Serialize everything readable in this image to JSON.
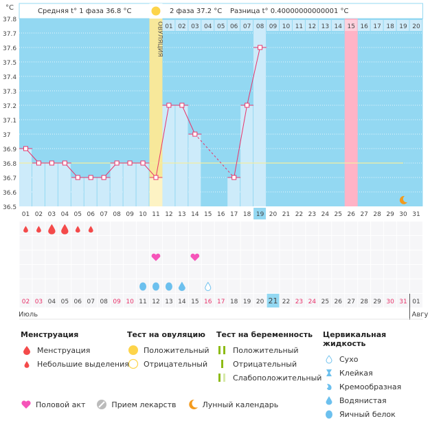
{
  "header": {
    "unit_label": "°C",
    "phase1_label": "Средняя t° 1 фаза 36.8 °C",
    "phase2_label": "2 фаза 37.2 °C",
    "diff_label": "Разница t° 0.40000000000001 °C",
    "ovulation_label": "ОВУЛЯЦИЯ"
  },
  "colors": {
    "background": "#93d8f2",
    "bar": "#cdebfa",
    "ovulation": "#f7e89a",
    "line": "#e8336a",
    "average": "#f4eda0",
    "expected_period": "#ffb3c6",
    "today": "#93d8f2",
    "weekend": "#e8336a"
  },
  "chart_data": {
    "type": "line",
    "title": "",
    "xlabel": "",
    "ylabel": "°C",
    "ylim": [
      36.5,
      37.8
    ],
    "yticks": [
      "36.5",
      "36.6",
      "36.7",
      "36.8",
      "36.9",
      "37",
      "37.1",
      "37.2",
      "37.3",
      "37.4",
      "37.5",
      "37.6",
      "37.7",
      "37.8"
    ],
    "x": [
      "01",
      "02",
      "03",
      "04",
      "05",
      "06",
      "07",
      "08",
      "09",
      "10",
      "11",
      "12",
      "13",
      "14",
      "15",
      "16",
      "17",
      "18",
      "19",
      "20",
      "21",
      "22",
      "23",
      "24",
      "25",
      "26",
      "27",
      "28",
      "29",
      "30",
      "31"
    ],
    "cycle_days_top": [
      "01",
      "02",
      "03",
      "04",
      "05",
      "06",
      "07",
      "08",
      "09",
      "10",
      "11",
      "12",
      "13",
      "14",
      "15",
      "16",
      "17",
      "18",
      "19",
      "20"
    ],
    "cycle_top_start_index": 11,
    "cycle_top_highlight": "15",
    "series": [
      {
        "name": "Температура",
        "values": [
          36.9,
          36.8,
          36.8,
          36.8,
          36.7,
          36.7,
          36.7,
          36.8,
          36.8,
          36.8,
          36.7,
          37.2,
          37.2,
          37.0,
          null,
          null,
          36.7,
          37.2,
          37.6,
          null,
          null,
          null,
          null,
          null,
          null,
          null,
          null,
          null,
          null,
          null,
          null
        ]
      }
    ],
    "average_line": 36.8,
    "average_line_until_day": 30,
    "ovulation_day": 11,
    "expected_period_day": 26,
    "today_index": 19,
    "moon_day": 30,
    "grid": true
  },
  "calendar": {
    "dates": [
      "02",
      "03",
      "04",
      "05",
      "06",
      "07",
      "08",
      "09",
      "10",
      "11",
      "12",
      "13",
      "14",
      "15",
      "16",
      "17",
      "18",
      "19",
      "20",
      "21",
      "22",
      "23",
      "24",
      "25",
      "26",
      "27",
      "28",
      "29",
      "30",
      "31",
      "01"
    ],
    "weekend": [
      true,
      true,
      false,
      false,
      false,
      false,
      false,
      true,
      true,
      false,
      false,
      false,
      false,
      false,
      true,
      true,
      false,
      false,
      false,
      false,
      false,
      true,
      true,
      false,
      false,
      false,
      false,
      false,
      true,
      true,
      false
    ],
    "today_index": 19,
    "month_left": "Июль",
    "month_right": "Авгу",
    "menstruation": {
      "1": "large-small",
      "2": "small",
      "3": "large",
      "4": "large",
      "5": "small",
      "6": "small"
    },
    "menstruation_sizes": [
      "small",
      "small",
      "large",
      "large",
      "small",
      "small"
    ],
    "intercourse_days": [
      11,
      14
    ],
    "cervical": [
      {
        "day": 10,
        "type": "egg-white"
      },
      {
        "day": 11,
        "type": "egg-white"
      },
      {
        "day": 12,
        "type": "egg-white"
      },
      {
        "day": 13,
        "type": "watery"
      },
      {
        "day": 15,
        "type": "dry"
      }
    ]
  },
  "legend": {
    "menstruation": {
      "title": "Менструация",
      "items": [
        "Менструация",
        "Небольшие выделения"
      ]
    },
    "ovulation_test": {
      "title": "Тест на овуляцию",
      "items": [
        "Положительный",
        "Отрицательный"
      ]
    },
    "pregnancy_test": {
      "title": "Тест на беременность",
      "items": [
        "Положительный",
        "Отрицательный",
        "Слабоположительный"
      ]
    },
    "cervical": {
      "title": "Цервикальная жидкость",
      "items": [
        "Сухо",
        "Клейкая",
        "Кремообразная",
        "Водянистая",
        "Яичный белок"
      ]
    },
    "bottom": [
      "Половой акт",
      "Прием лекарств",
      "Лунный календарь"
    ]
  }
}
